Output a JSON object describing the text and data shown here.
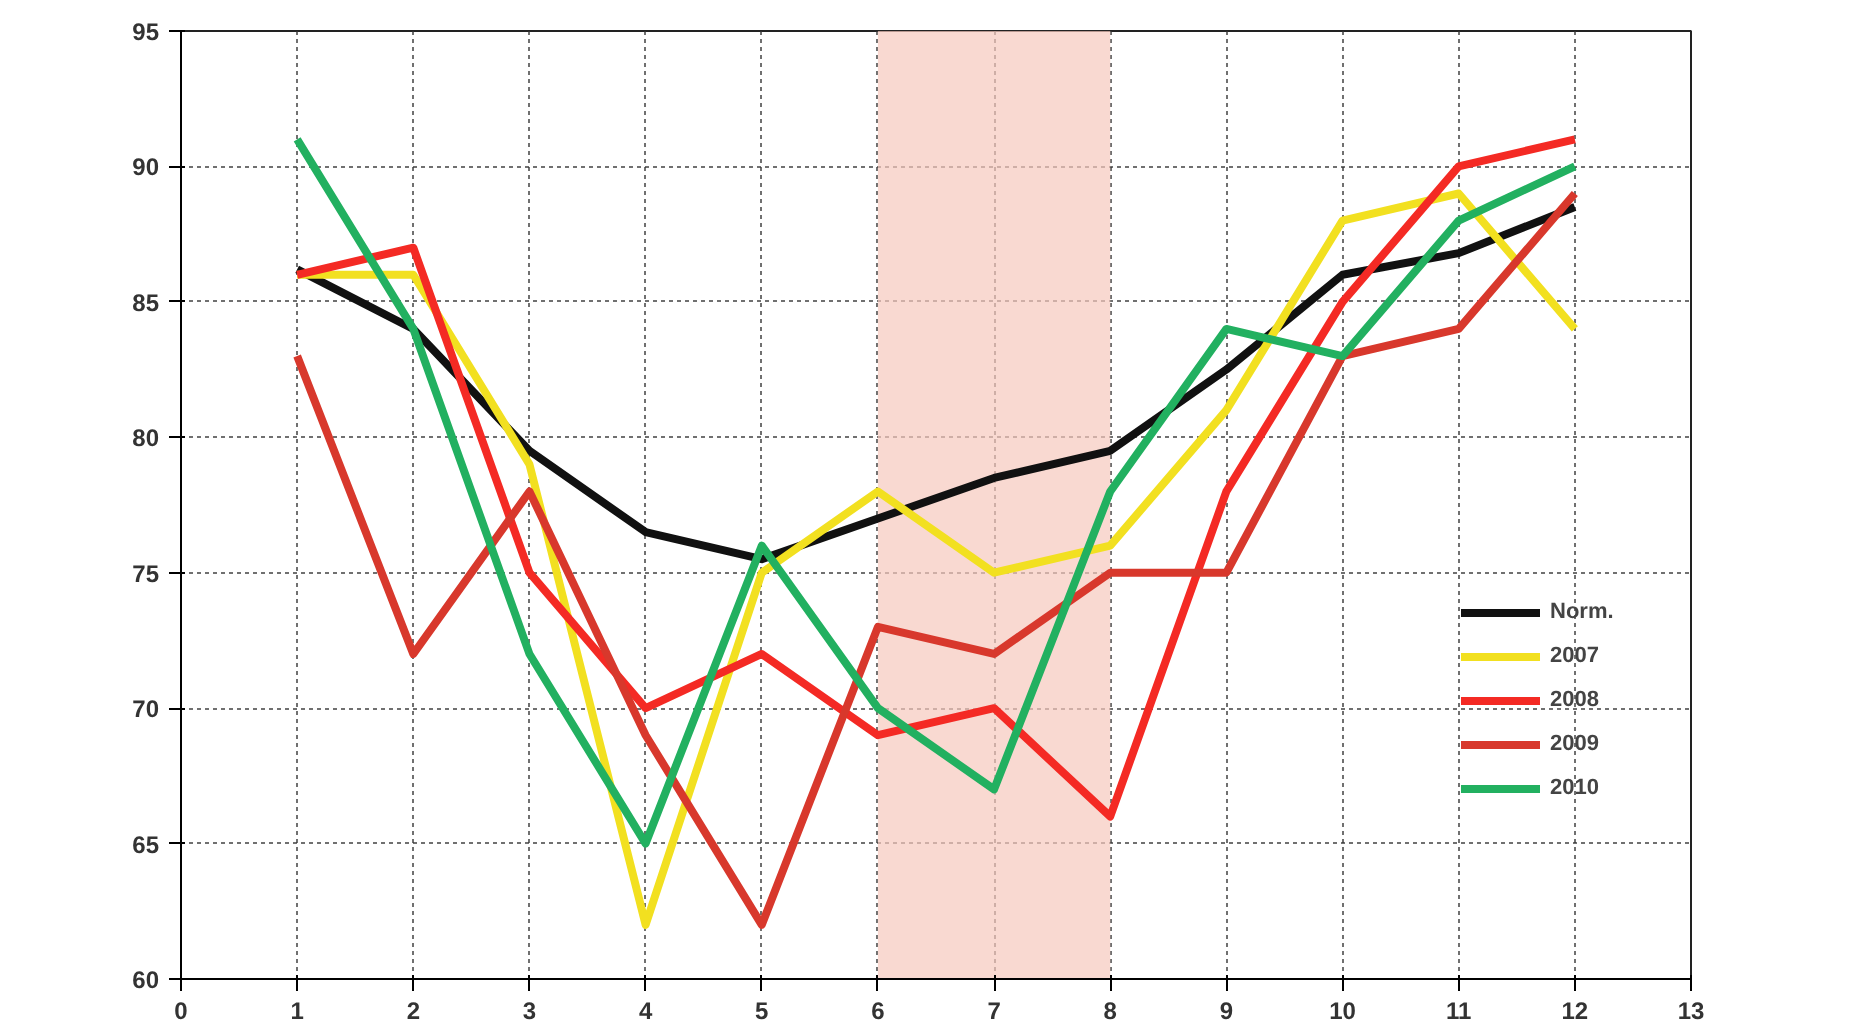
{
  "chart_data": {
    "type": "line",
    "x": [
      1,
      2,
      3,
      4,
      5,
      6,
      7,
      8,
      9,
      10,
      11,
      12
    ],
    "series": [
      {
        "name": "Norm.",
        "color": "#111111",
        "values": [
          86.2,
          84,
          79.5,
          76.5,
          75.5,
          77,
          78.5,
          79.5,
          82.5,
          86,
          86.8,
          88.5
        ]
      },
      {
        "name": "2007",
        "color": "#f2e020",
        "values": [
          86,
          86,
          79,
          62,
          75,
          78,
          75,
          76,
          81,
          88,
          89,
          84
        ]
      },
      {
        "name": "2008",
        "color": "#f42a24",
        "values": [
          86,
          87,
          75,
          70,
          72,
          69,
          70,
          66,
          78,
          85,
          90,
          91
        ]
      },
      {
        "name": "2009",
        "color": "#d8382c",
        "values": [
          83,
          72,
          78,
          69,
          62,
          73,
          72,
          75,
          75,
          83,
          84,
          89
        ]
      },
      {
        "name": "2010",
        "color": "#22b060",
        "values": [
          91,
          84,
          72,
          65,
          76,
          70,
          67,
          78,
          84,
          83,
          88,
          90
        ]
      }
    ],
    "xlim": [
      0,
      13
    ],
    "xticks": [
      0,
      1,
      2,
      3,
      4,
      5,
      6,
      7,
      8,
      9,
      10,
      11,
      12,
      13
    ],
    "ylim": [
      60,
      95
    ],
    "yticks": [
      60,
      65,
      70,
      75,
      80,
      85,
      90,
      95
    ],
    "bands": [
      {
        "axis": "x",
        "from": 6,
        "to": 8,
        "color": "#f6c9bd"
      }
    ],
    "grid": true,
    "legend": "right",
    "line_style": "solid",
    "marker": "none"
  }
}
